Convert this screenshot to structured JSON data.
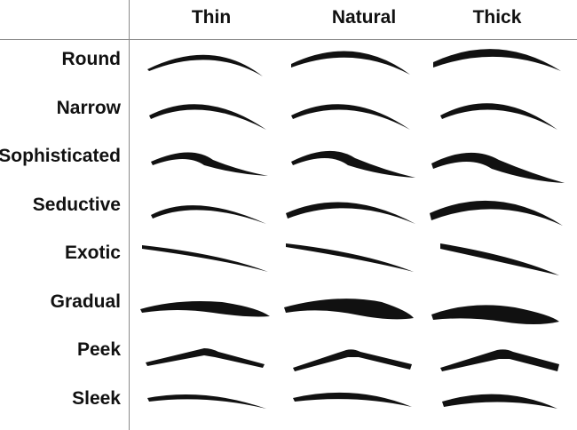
{
  "columns": [
    "Thin",
    "Natural",
    "Thick"
  ],
  "rows": [
    "Round",
    "Narrow",
    "Sophisticated",
    "Seductive",
    "Exotic",
    "Gradual",
    "Peek",
    "Sleek"
  ],
  "colors": {
    "ink": "#111111",
    "grid": "#8a8a8a",
    "background": "#ffffff"
  }
}
